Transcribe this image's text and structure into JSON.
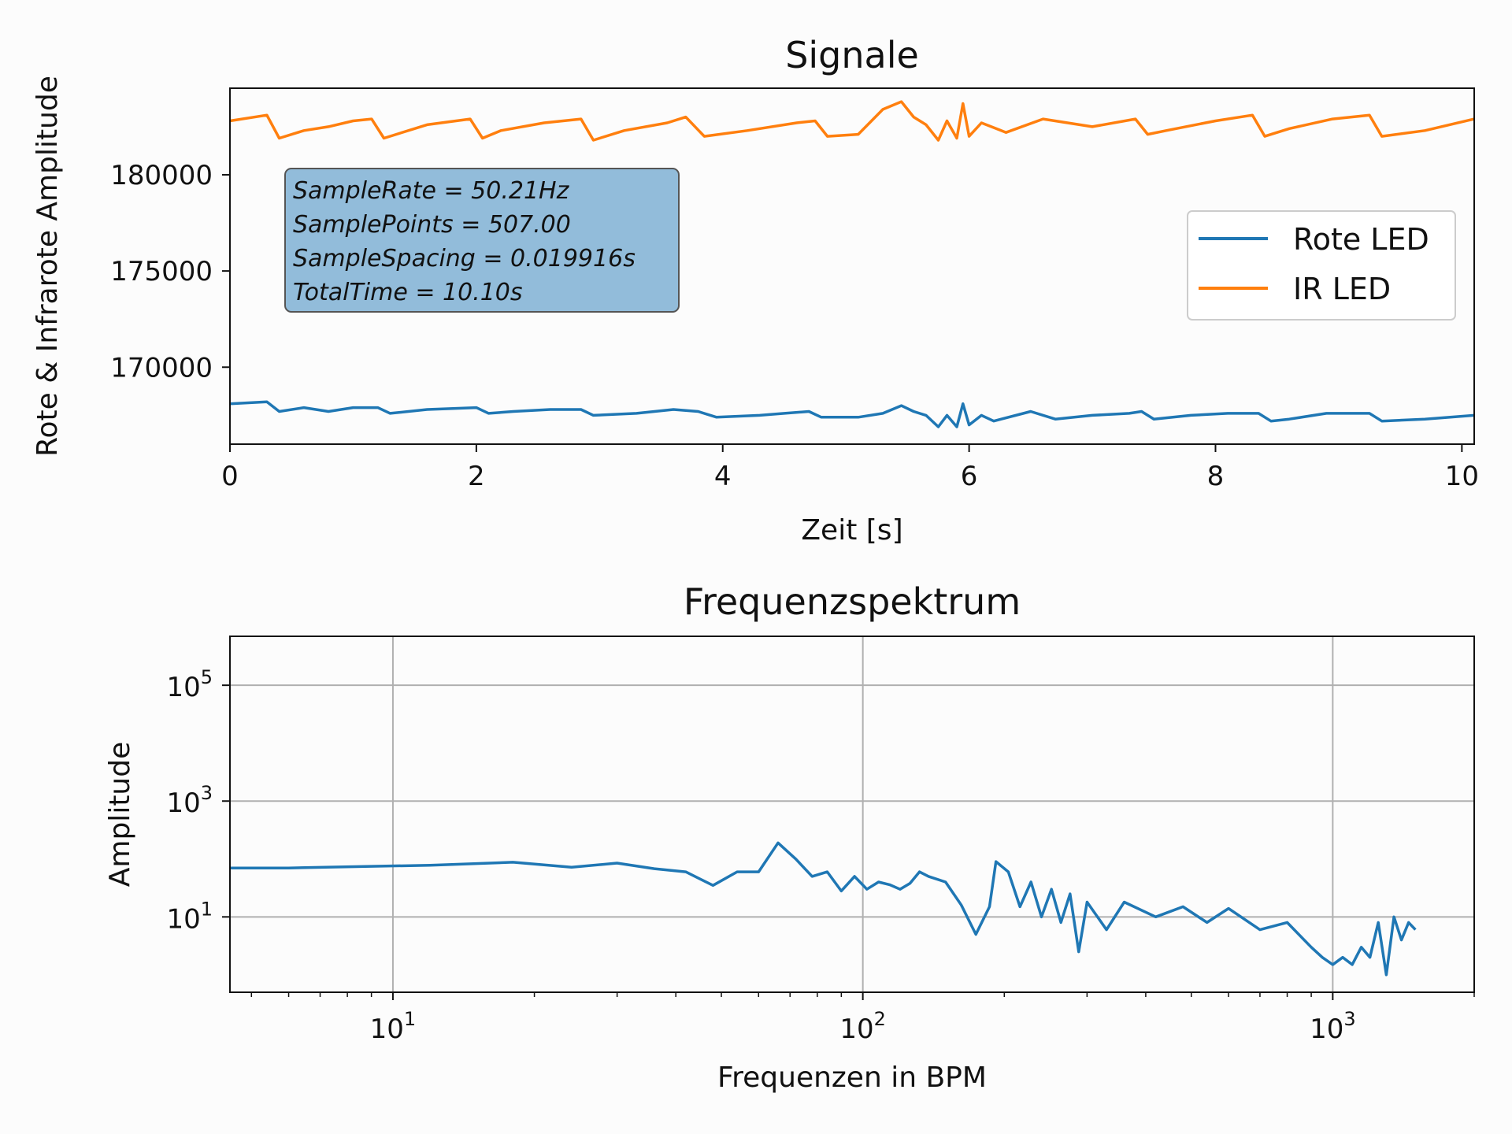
{
  "chart_data": [
    {
      "type": "line",
      "title": "Signale",
      "xlabel": "Zeit [s]",
      "ylabel": "Rote & Infrarote Amplitude",
      "xlim": [
        0,
        10.1
      ],
      "ylim": [
        166000,
        184500
      ],
      "xticks": [
        0,
        2,
        4,
        6,
        8,
        10
      ],
      "yticks": [
        170000,
        175000,
        180000
      ],
      "grid": false,
      "legend": "center-right",
      "annotation": [
        "SampleRate = 50.21Hz",
        "SamplePoints = 507.00",
        "SampleSpacing = 0.019916s",
        "TotalTime = 10.10s"
      ],
      "series": [
        {
          "name": "Rote LED",
          "color": "#1f77b4",
          "x": [
            0,
            0.3,
            0.4,
            0.6,
            0.8,
            1.0,
            1.2,
            1.3,
            1.6,
            2.0,
            2.1,
            2.3,
            2.6,
            2.85,
            2.95,
            3.3,
            3.6,
            3.8,
            3.95,
            4.3,
            4.5,
            4.7,
            4.8,
            5.1,
            5.3,
            5.45,
            5.55,
            5.65,
            5.75,
            5.82,
            5.9,
            5.95,
            6.0,
            6.1,
            6.2,
            6.5,
            6.7,
            7.0,
            7.3,
            7.4,
            7.5,
            7.8,
            8.1,
            8.35,
            8.45,
            8.6,
            8.9,
            9.25,
            9.35,
            9.7,
            10.1
          ],
          "y": [
            168100,
            168200,
            167700,
            167900,
            167700,
            167900,
            167900,
            167600,
            167800,
            167900,
            167600,
            167700,
            167800,
            167800,
            167500,
            167600,
            167800,
            167700,
            167400,
            167500,
            167600,
            167700,
            167400,
            167400,
            167600,
            168000,
            167700,
            167500,
            166900,
            167500,
            166900,
            168100,
            167000,
            167500,
            167200,
            167700,
            167300,
            167500,
            167600,
            167700,
            167300,
            167500,
            167600,
            167600,
            167200,
            167300,
            167600,
            167600,
            167200,
            167300,
            167500
          ]
        },
        {
          "name": "IR LED",
          "color": "#ff7f0e",
          "x": [
            0,
            0.3,
            0.4,
            0.6,
            0.8,
            1.0,
            1.15,
            1.25,
            1.6,
            1.95,
            2.05,
            2.2,
            2.55,
            2.85,
            2.95,
            3.2,
            3.55,
            3.7,
            3.85,
            4.2,
            4.6,
            4.75,
            4.85,
            5.1,
            5.3,
            5.45,
            5.55,
            5.65,
            5.75,
            5.82,
            5.9,
            5.95,
            6.0,
            6.1,
            6.3,
            6.6,
            7.0,
            7.35,
            7.45,
            7.6,
            8.0,
            8.3,
            8.4,
            8.6,
            8.95,
            9.25,
            9.35,
            9.7,
            10.1
          ],
          "y": [
            182800,
            183100,
            181900,
            182300,
            182500,
            182800,
            182900,
            181900,
            182600,
            182900,
            181900,
            182300,
            182700,
            182900,
            181800,
            182300,
            182700,
            183000,
            182000,
            182300,
            182700,
            182800,
            182000,
            182100,
            183400,
            183800,
            183000,
            182600,
            181800,
            182800,
            181900,
            183700,
            182000,
            182700,
            182200,
            182900,
            182500,
            182900,
            182100,
            182300,
            182800,
            183100,
            182000,
            182400,
            182900,
            183100,
            182000,
            182300,
            182900
          ]
        }
      ]
    },
    {
      "type": "line",
      "title": "Frequenzspektrum",
      "xlabel": "Frequenzen in BPM",
      "ylabel": "Amplitude",
      "xscale": "log",
      "yscale": "log",
      "xlim": [
        4.5,
        2000
      ],
      "ylim": [
        0.5,
        700000
      ],
      "xticks": [
        "10^1",
        "10^2",
        "10^3"
      ],
      "yticks": [
        "10^1",
        "10^3",
        "10^5"
      ],
      "grid": true,
      "series": [
        {
          "color": "#1f77b4",
          "x": [
            4.5,
            6,
            12,
            18,
            24,
            30,
            36,
            42,
            48,
            54,
            60,
            66,
            72,
            78,
            84,
            90,
            96,
            102,
            108,
            114,
            120,
            126,
            132,
            138,
            150,
            162,
            174,
            186,
            192,
            204,
            216,
            228,
            240,
            252,
            264,
            276,
            288,
            300,
            330,
            360,
            420,
            480,
            540,
            600,
            700,
            800,
            900,
            950,
            1000,
            1050,
            1100,
            1150,
            1200,
            1250,
            1300,
            1350,
            1400,
            1450,
            1500
          ],
          "y": [
            70,
            70,
            78,
            88,
            72,
            85,
            68,
            60,
            35,
            60,
            60,
            190,
            100,
            50,
            60,
            28,
            50,
            30,
            40,
            36,
            30,
            38,
            60,
            50,
            40,
            16,
            5,
            15,
            90,
            60,
            15,
            40,
            10,
            30,
            8,
            25,
            2.5,
            18,
            6,
            18,
            10,
            15,
            8,
            14,
            6,
            8,
            3,
            2,
            1.5,
            2,
            1.5,
            3,
            2,
            8,
            1,
            10,
            4,
            8,
            6
          ]
        }
      ]
    }
  ]
}
